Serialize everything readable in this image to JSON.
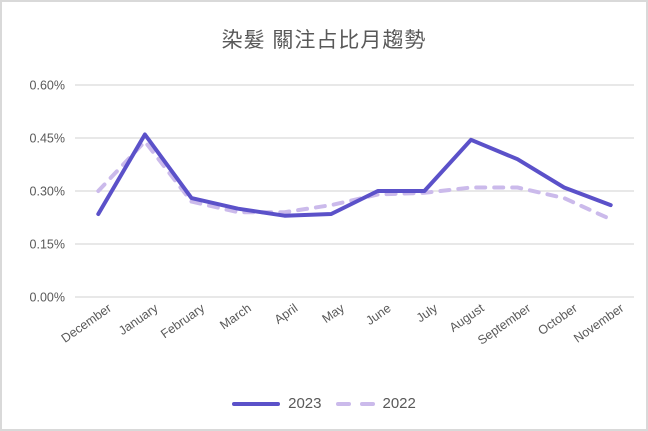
{
  "chart": {
    "frame_border_color": "#d9d9d9",
    "background_color": "#ffffff",
    "text_color": "#595959",
    "gridline_color": "#d9d9d9"
  },
  "chart_data": {
    "type": "line",
    "title": "染髮 關注占比月趨勢",
    "xlabel": "",
    "ylabel": "",
    "categories": [
      "December",
      "January",
      "February",
      "March",
      "April",
      "May",
      "June",
      "July",
      "August",
      "September",
      "October",
      "November"
    ],
    "series": [
      {
        "name": "2023",
        "style": "solid",
        "color": "#5b51c9",
        "values": [
          0.235,
          0.46,
          0.28,
          0.25,
          0.23,
          0.235,
          0.3,
          0.3,
          0.445,
          0.39,
          0.31,
          0.26
        ]
      },
      {
        "name": "2022",
        "style": "dashed",
        "color": "#cbbaeb",
        "values": [
          0.3,
          0.44,
          0.27,
          0.24,
          0.24,
          0.26,
          0.29,
          0.295,
          0.31,
          0.31,
          0.28,
          0.22
        ]
      }
    ],
    "value_unit": "%",
    "y_ticks": [
      "0.60%",
      "0.45%",
      "0.30%",
      "0.15%",
      "0.00%"
    ],
    "ylim": [
      0,
      0.6
    ],
    "y_tick_step": 0.15,
    "grid": true,
    "legend_position": "bottom",
    "x_label_rotation_deg": -35
  }
}
